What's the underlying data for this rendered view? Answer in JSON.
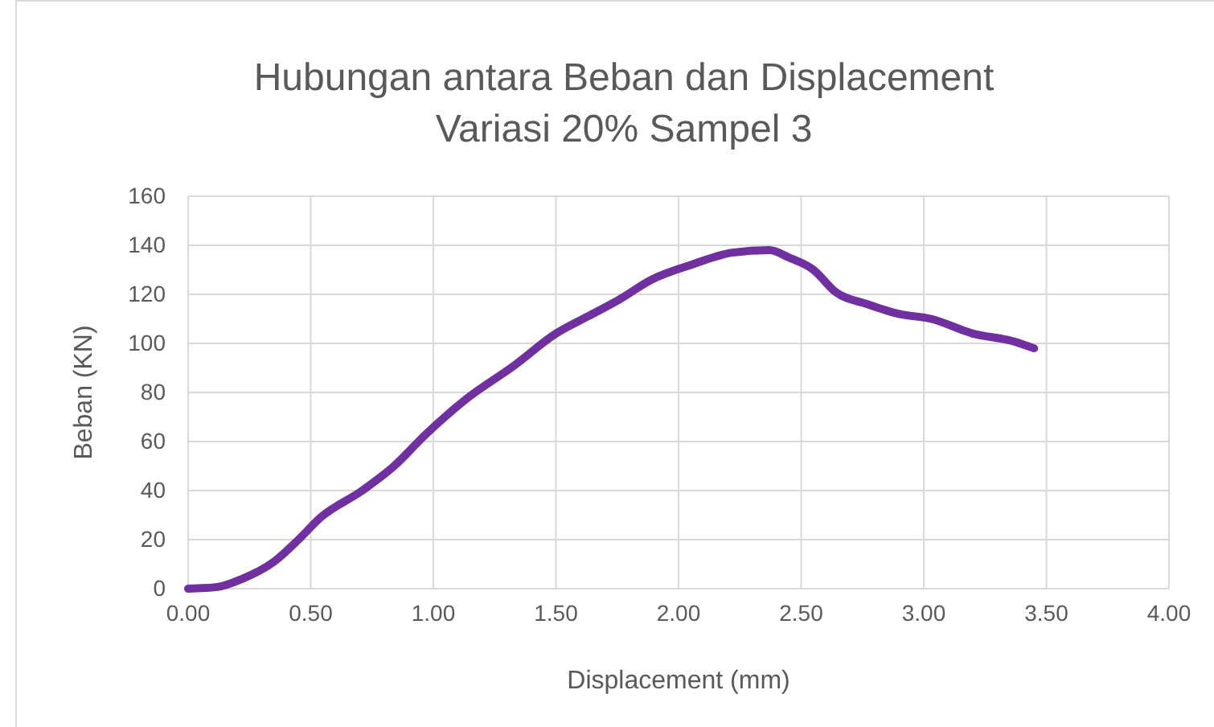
{
  "chart_data": {
    "type": "line",
    "title": "Hubungan antara Beban dan Displacement",
    "subtitle": "Variasi 20% Sampel 3",
    "xlabel": "Displacement (mm)",
    "ylabel": "Beban (KN)",
    "x": [
      0,
      0.12,
      0.22,
      0.35,
      0.45,
      0.54,
      0.71,
      0.84,
      0.97,
      1.13,
      1.33,
      1.5,
      1.63,
      1.76,
      1.89,
      2.05,
      2.22,
      2.37,
      2.45,
      2.55,
      2.64,
      2.77,
      2.9,
      3.03,
      3.2,
      3.36,
      3.45
    ],
    "series": [
      {
        "color": "#7030a0",
        "values": [
          0,
          0.7,
          4,
          11,
          20,
          29,
          40,
          50,
          63,
          77,
          91,
          104,
          111,
          118,
          126,
          132,
          137,
          138,
          135,
          130,
          121,
          116,
          112,
          110,
          104,
          101,
          98
        ]
      }
    ],
    "xlim": [
      0,
      4
    ],
    "xticks": [
      {
        "value": 0,
        "label": "0.00"
      },
      {
        "value": 0.5,
        "label": "0.50"
      },
      {
        "value": 1,
        "label": "1.00"
      },
      {
        "value": 1.5,
        "label": "1.50"
      },
      {
        "value": 2,
        "label": "2.00"
      },
      {
        "value": 2.5,
        "label": "2.50"
      },
      {
        "value": 3,
        "label": "3.00"
      },
      {
        "value": 3.5,
        "label": "3.50"
      },
      {
        "value": 4,
        "label": "4.00"
      }
    ],
    "ylim": [
      0,
      160
    ],
    "yticks": [
      0,
      20,
      40,
      60,
      80,
      100,
      120,
      140,
      160
    ],
    "grid": true,
    "marker": "none",
    "line_style": "solid"
  }
}
